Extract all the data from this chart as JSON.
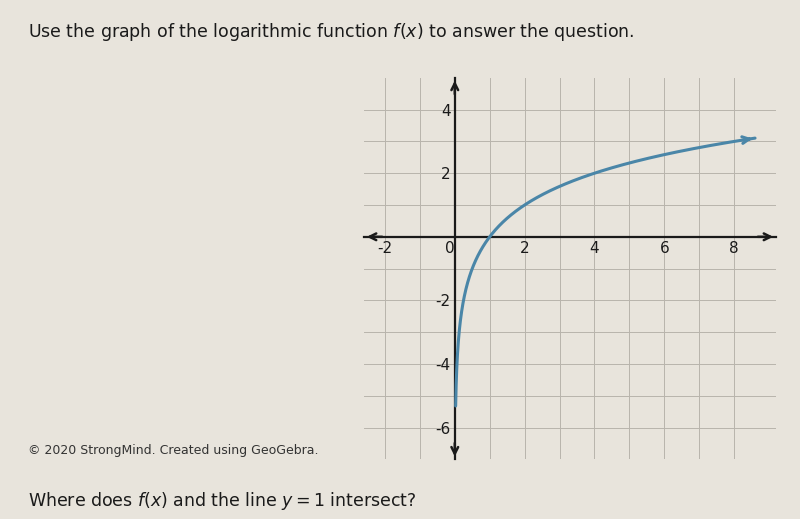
{
  "title": "Use the graph of the logarithmic function $f(x)$ to answer the question.",
  "footer": "© 2020 StrongMind. Created using GeoGebra.",
  "question": "Where does $f(x)$ and the line $y = 1$ intersect?",
  "xlim": [
    -2.6,
    9.2
  ],
  "ylim": [
    -7.0,
    5.0
  ],
  "xticks": [
    -2,
    0,
    2,
    4,
    6,
    8
  ],
  "yticks": [
    -6,
    -4,
    -2,
    2,
    4
  ],
  "curve_color": "#4a86a8",
  "curve_lw": 2.2,
  "background_color": "#e8e4dc",
  "grid_color": "#b8b4ac",
  "axis_color": "#1a1a1a",
  "log_base": 2,
  "x_start": 0.025,
  "x_end": 8.6
}
